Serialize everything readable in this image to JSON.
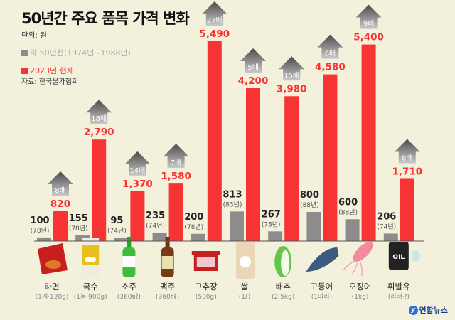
{
  "chart_data": {
    "type": "bar",
    "title": "50년간 주요 품목 가격 변화",
    "unit_label": "단위: 원",
    "source": "자료: 한국물가협회",
    "legend_placement": "top-left",
    "categories": [
      "라면",
      "국수",
      "소주",
      "맥주",
      "고추장",
      "쌀",
      "배추",
      "고등어",
      "오징어",
      "휘발유"
    ],
    "category_units": [
      "(1개·120g)",
      "(1봉·900g)",
      "(360㎖)",
      "(360㎖)",
      "(500g)",
      "(1ℓ)",
      "(2.5kg)",
      "(1마리)",
      "(1kg)",
      "(리터·ℓ)"
    ],
    "series": [
      {
        "name": "약 50년전(1974년~1988년)",
        "color": "#8c8c8c",
        "values": [
          100,
          155,
          95,
          235,
          200,
          813,
          267,
          800,
          600,
          206
        ],
        "labels": [
          "100",
          "155",
          "95",
          "235",
          "200",
          "813",
          "267",
          "800",
          "600",
          "206"
        ],
        "years": [
          "(78년)",
          "(78년)",
          "(74년)",
          "(74년)",
          "(78년)",
          "(83년)",
          "(78년)",
          "(88년)",
          "(88년)",
          "(74년)"
        ]
      },
      {
        "name": "2023년 현재",
        "color": "#f83333",
        "values": [
          820,
          2790,
          1370,
          1580,
          5490,
          4200,
          3980,
          4580,
          5400,
          1710
        ],
        "labels": [
          "820",
          "2,790",
          "1,370",
          "1,580",
          "5,490",
          "4,200",
          "3,980",
          "4,580",
          "5,400",
          "1,710"
        ],
        "multipliers": [
          "8배",
          "18배",
          "14배",
          "7배",
          "27배",
          "5배",
          "15배",
          "6배",
          "9배",
          "8배"
        ]
      }
    ],
    "ylim": [
      0,
      5600
    ],
    "grid": false,
    "icons": [
      "ramen-icon",
      "noodle-icon",
      "soju-bottle-icon",
      "beer-bottle-icon",
      "gochujang-tub-icon",
      "rice-bag-icon",
      "cabbage-icon",
      "mackerel-icon",
      "squid-icon",
      "oil-barrel-icon"
    ]
  },
  "logo": "연합뉴스"
}
